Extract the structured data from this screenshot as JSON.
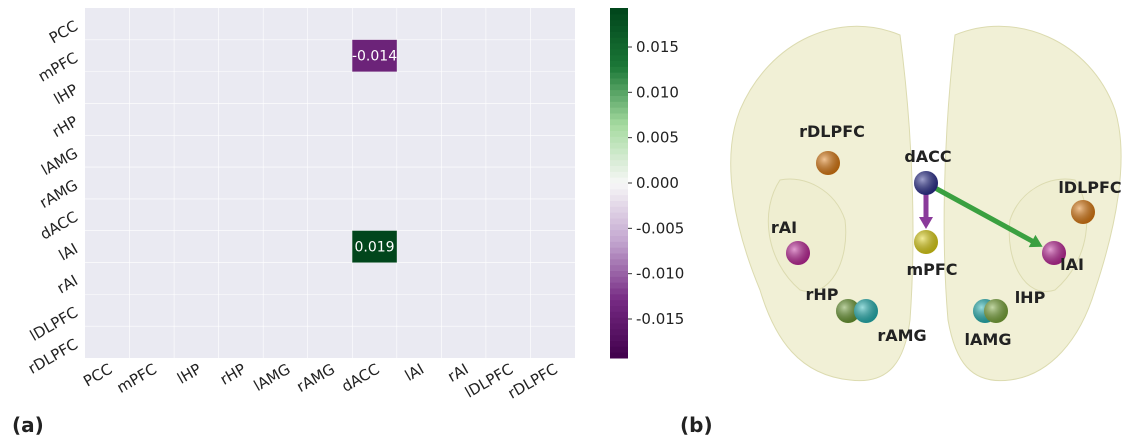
{
  "chart_data": {
    "type": "heatmap",
    "rows": [
      "PCC",
      "mPFC",
      "lHP",
      "rHP",
      "lAMG",
      "rAMG",
      "dACC",
      "lAI",
      "rAI",
      "lDLPFC",
      "rDLPFC"
    ],
    "columns": [
      "PCC",
      "mPFC",
      "lHP",
      "rHP",
      "lAMG",
      "rAMG",
      "dACC",
      "lAI",
      "rAI",
      "lDLPFC",
      "rDLPFC"
    ],
    "values": [
      [
        null,
        null,
        null,
        null,
        null,
        null,
        null,
        null,
        null,
        null,
        null
      ],
      [
        null,
        null,
        null,
        null,
        null,
        null,
        -0.014,
        null,
        null,
        null,
        null
      ],
      [
        null,
        null,
        null,
        null,
        null,
        null,
        null,
        null,
        null,
        null,
        null
      ],
      [
        null,
        null,
        null,
        null,
        null,
        null,
        null,
        null,
        null,
        null,
        null
      ],
      [
        null,
        null,
        null,
        null,
        null,
        null,
        null,
        null,
        null,
        null,
        null
      ],
      [
        null,
        null,
        null,
        null,
        null,
        null,
        null,
        null,
        null,
        null,
        null
      ],
      [
        null,
        null,
        null,
        null,
        null,
        null,
        null,
        null,
        null,
        null,
        null
      ],
      [
        null,
        null,
        null,
        null,
        null,
        null,
        0.019,
        null,
        null,
        null,
        null
      ],
      [
        null,
        null,
        null,
        null,
        null,
        null,
        null,
        null,
        null,
        null,
        null
      ],
      [
        null,
        null,
        null,
        null,
        null,
        null,
        null,
        null,
        null,
        null,
        null
      ],
      [
        null,
        null,
        null,
        null,
        null,
        null,
        null,
        null,
        null,
        null,
        null
      ]
    ],
    "clim": [
      -0.0193,
      0.0193
    ],
    "cticks": [
      0.015,
      {
        "value": 0.01,
        "label": "0.010"
      },
      0.005,
      {
        "value": 0,
        "label": "0.000"
      },
      -0.005,
      {
        "value": -0.01,
        "label": "-0.010"
      },
      -0.015
    ],
    "colorscale": [
      "#40004b",
      "#762a83",
      "#c2a5cf",
      "#f7f7f7",
      "#a6dba0",
      "#1b7837",
      "#00441b"
    ],
    "nan_color": "#eaeaf2",
    "panel_label": "(a)"
  },
  "diagram": {
    "panel_label": "(b)",
    "nodes": [
      {
        "label": "rDLPFC",
        "color": "#e07b10"
      },
      {
        "label": "dACC",
        "color": "#2a2d8e"
      },
      {
        "label": "lDLPFC",
        "color": "#e07b10"
      },
      {
        "label": "rAI",
        "color": "#c0269a"
      },
      {
        "label": "mPFC",
        "color": "#e2d414"
      },
      {
        "label": "lAI",
        "color": "#c0269a"
      },
      {
        "label": "rHP",
        "color": "#6a9a30"
      },
      {
        "label": "rAMG",
        "color": "#22b4b4"
      },
      {
        "label": "lAMG",
        "color": "#22b4b4"
      },
      {
        "label": "lHP",
        "color": "#7aa838"
      }
    ],
    "edges": [
      {
        "from": 1,
        "to": 4,
        "color": "#8a3a9a"
      },
      {
        "from": 1,
        "to": 5,
        "color": "#3aa040"
      }
    ]
  }
}
